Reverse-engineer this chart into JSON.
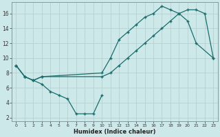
{
  "xlabel": "Humidex (Indice chaleur)",
  "bg_color": "#cce8e8",
  "grid_color": "#b0cccc",
  "line_color": "#1a6b6b",
  "xlim": [
    -0.5,
    23.5
  ],
  "ylim": [
    1.5,
    17.5
  ],
  "yticks": [
    2,
    4,
    6,
    8,
    10,
    12,
    14,
    16
  ],
  "xticks": [
    0,
    1,
    2,
    3,
    4,
    5,
    6,
    7,
    8,
    9,
    10,
    11,
    12,
    13,
    14,
    15,
    16,
    17,
    18,
    19,
    20,
    21,
    22,
    23
  ],
  "line1_x": [
    0,
    1,
    2,
    3,
    4,
    5,
    6,
    7,
    8,
    9,
    10
  ],
  "line1_y": [
    9.0,
    7.5,
    7.0,
    6.5,
    5.5,
    5.0,
    4.5,
    2.5,
    2.5,
    2.5,
    5.0
  ],
  "line2_x": [
    0,
    1,
    2,
    3,
    10,
    11,
    12,
    13,
    14,
    15,
    16,
    17,
    18,
    19,
    20,
    21,
    23
  ],
  "line2_y": [
    9.0,
    7.5,
    7.0,
    7.5,
    8.0,
    10.0,
    12.5,
    13.5,
    14.5,
    15.5,
    16.0,
    17.0,
    16.5,
    16.0,
    15.0,
    12.0,
    10.0
  ],
  "line3_x": [
    0,
    1,
    2,
    3,
    10,
    11,
    12,
    13,
    14,
    15,
    16,
    17,
    18,
    19,
    20,
    21,
    22,
    23
  ],
  "line3_y": [
    9.0,
    7.5,
    7.0,
    7.5,
    7.5,
    8.0,
    9.0,
    10.0,
    11.0,
    12.0,
    13.0,
    14.0,
    15.0,
    16.0,
    16.5,
    16.5,
    16.0,
    10.0
  ]
}
